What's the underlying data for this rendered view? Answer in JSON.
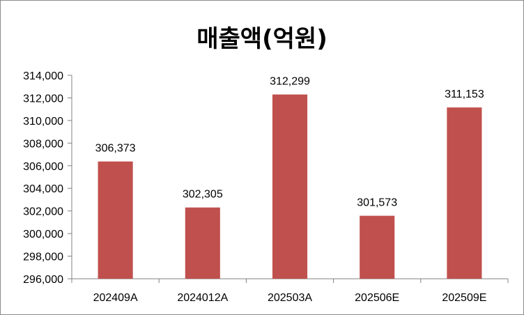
{
  "chart_data": {
    "type": "bar",
    "title": "매출액(억원)",
    "xlabel": "",
    "ylabel": "",
    "categories": [
      "202409A",
      "2024012A",
      "202503A",
      "202506E",
      "202509E"
    ],
    "values": [
      306373,
      302305,
      312299,
      301573,
      311153
    ],
    "value_labels": [
      "306,373",
      "302,305",
      "312,299",
      "301,573",
      "311,153"
    ],
    "ylim": [
      296000,
      314000
    ],
    "yticks": [
      296000,
      298000,
      300000,
      302000,
      304000,
      306000,
      308000,
      310000,
      312000,
      314000
    ],
    "ytick_labels": [
      "296,000",
      "298,000",
      "300,000",
      "302,000",
      "304,000",
      "306,000",
      "308,000",
      "310,000",
      "312,000",
      "314,000"
    ],
    "bar_color": "#c0504d",
    "grid": false,
    "legend": "none"
  }
}
